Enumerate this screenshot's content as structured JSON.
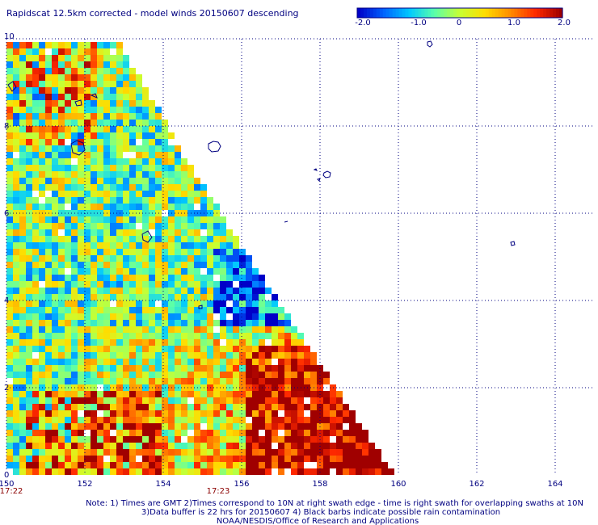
{
  "title": "Rapidscat 12.5km corrected - model winds 20150607 descending",
  "colorbar": {
    "tick_labels": [
      "-2.0",
      "-1.0",
      "0",
      "1.0",
      "2.0"
    ],
    "colors": [
      "#0000c8",
      "#0064ff",
      "#00c8ff",
      "#5affaa",
      "#c8ff32",
      "#ffdc00",
      "#ff8c00",
      "#ff2800",
      "#a00000"
    ]
  },
  "axes": {
    "x_ticks": [
      "150",
      "152",
      "154",
      "156",
      "158",
      "160",
      "162",
      "164"
    ],
    "y_ticks": [
      "0",
      "2",
      "4",
      "6",
      "8",
      "10"
    ],
    "x_range": [
      150,
      164.5
    ],
    "y_range": [
      0,
      10
    ]
  },
  "times": {
    "left": "17:22",
    "middle": "17:23"
  },
  "notes": {
    "line1": "Note: 1) Times are GMT 2)Times correspond to 10N at right swath edge - time is right swath for overlapping swaths at 10N",
    "line2": "3)Data buffer is 22 hrs for 20150607 4) Black barbs indicate possible rain contamination",
    "line3": "NOAA/NESDIS/Office of Research and Applications"
  },
  "colors": {
    "text": "#000080",
    "time_text": "#8b0000",
    "grid": "#000080",
    "coastline": "#000080"
  }
}
